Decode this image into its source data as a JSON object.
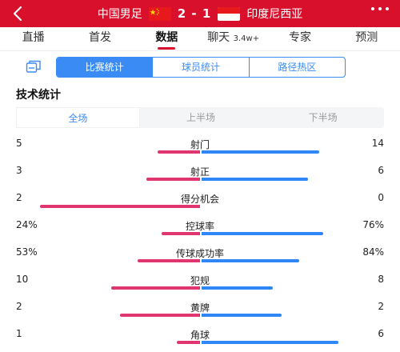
{
  "header": {
    "home_team": "中国男足",
    "away_team": "印度尼西亚",
    "score": "2 - 1",
    "home_flag": "cn-flag",
    "away_flag": "id-flag"
  },
  "tabs": [
    {
      "label": "直播"
    },
    {
      "label": "首发"
    },
    {
      "label": "数据",
      "active": true
    },
    {
      "label": "聊天",
      "badge": "3.4w+"
    },
    {
      "label": "专家"
    },
    {
      "label": "预测"
    }
  ],
  "subtabs": [
    {
      "label": "比赛统计",
      "active": true
    },
    {
      "label": "球员统计"
    },
    {
      "label": "路径热区"
    }
  ],
  "section_title": "技术统计",
  "halves": [
    {
      "label": "全场",
      "active": true
    },
    {
      "label": "上半场"
    },
    {
      "label": "下半场"
    }
  ],
  "stats": [
    {
      "name": "射门",
      "home": "5",
      "away": "14",
      "home_share": 0.263,
      "away_share": 0.737
    },
    {
      "name": "射正",
      "home": "3",
      "away": "6",
      "home_share": 0.333,
      "away_share": 0.667
    },
    {
      "name": "得分机会",
      "home": "2",
      "away": "0",
      "home_share": 1.0,
      "away_share": 0.0
    },
    {
      "name": "控球率",
      "home": "24%",
      "away": "76%",
      "home_share": 0.24,
      "away_share": 0.76
    },
    {
      "name": "传球成功率",
      "home": "53%",
      "away": "84%",
      "home_share": 0.39,
      "away_share": 0.61
    },
    {
      "name": "犯规",
      "home": "10",
      "away": "8",
      "home_share": 0.556,
      "away_share": 0.444
    },
    {
      "name": "黄牌",
      "home": "2",
      "away": "2",
      "home_share": 0.5,
      "away_share": 0.5
    },
    {
      "name": "角球",
      "home": "1",
      "away": "6",
      "home_share": 0.143,
      "away_share": 0.857
    }
  ],
  "colors": {
    "header_red": "#d8102b",
    "accent_blue": "#3b8bf5",
    "home_bar": "#e0356e",
    "away_bar": "#2f86f6"
  }
}
